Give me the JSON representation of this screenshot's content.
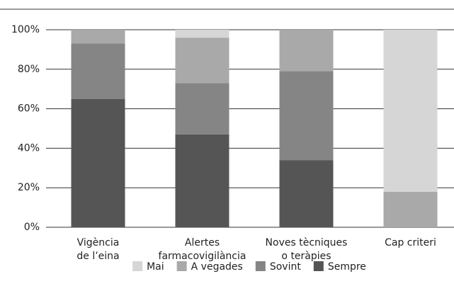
{
  "chart_data": {
    "type": "stacked-bar",
    "categories": [
      [
        "Vigència",
        "de l’eina"
      ],
      [
        "Alertes",
        "farmacovigilància"
      ],
      [
        "Noves tècniques",
        "o teràpies"
      ],
      [
        "Cap criteri"
      ]
    ],
    "series": [
      {
        "name": "Mai",
        "color": "#d6d6d6",
        "values": [
          0,
          4,
          0,
          82
        ]
      },
      {
        "name": "A vegades",
        "color": "#a9a9a9",
        "values": [
          7,
          23,
          21,
          18
        ]
      },
      {
        "name": "Sovint",
        "color": "#858585",
        "values": [
          28,
          26,
          45,
          0
        ]
      },
      {
        "name": "Sempre",
        "color": "#555555",
        "values": [
          65,
          47,
          34,
          0
        ]
      }
    ],
    "ylim": [
      0,
      100
    ],
    "yticks": [
      {
        "value": 0,
        "label": "0%"
      },
      {
        "value": 20,
        "label": "20%"
      },
      {
        "value": 40,
        "label": "40%"
      },
      {
        "value": 60,
        "label": "60%"
      },
      {
        "value": 80,
        "label": "80%"
      },
      {
        "value": 100,
        "label": "100%"
      }
    ],
    "grid": true
  }
}
